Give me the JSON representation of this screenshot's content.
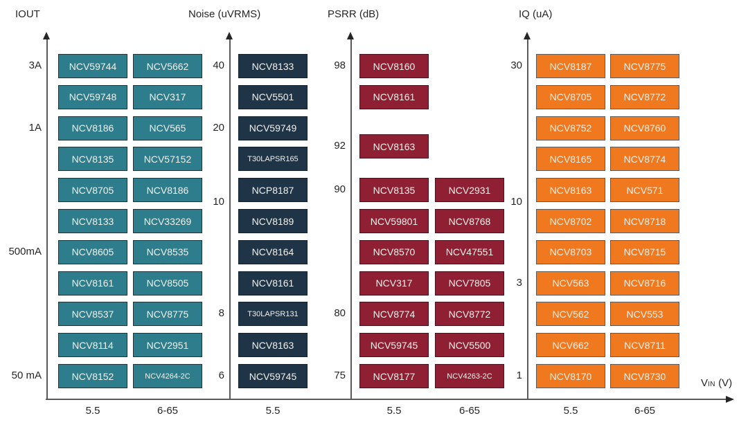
{
  "chart_data": {
    "type": "table",
    "description": "Four-panel LDO part selector chart; each panel plots part-number boxes against a parameter axis vs input-voltage columns",
    "x_axis_title": {
      "main": "V",
      "sub": "IN",
      "rest": " (V)"
    },
    "panels": [
      {
        "id": "iout",
        "title": "IOUT",
        "box_color": "#2E7D8C",
        "border_color": "#1E3238",
        "y_labels": [
          {
            "text": "3A",
            "row": 0
          },
          {
            "text": "1A",
            "row": 2
          },
          {
            "text": "500mA",
            "row": 6
          },
          {
            "text": "50 mA",
            "row": 10
          }
        ],
        "columns": [
          {
            "tick": "5.5",
            "boxes": [
              {
                "label": "NCV59744",
                "row": 0
              },
              {
                "label": "NCV59748",
                "row": 1
              },
              {
                "label": "NCV8186",
                "row": 2
              },
              {
                "label": "NCV8135",
                "row": 3
              },
              {
                "label": "NCV8705",
                "row": 4
              },
              {
                "label": "NCV8133",
                "row": 5
              },
              {
                "label": "NCV8605",
                "row": 6
              },
              {
                "label": "NCV8161",
                "row": 7
              },
              {
                "label": "NCV8537",
                "row": 8
              },
              {
                "label": "NCV8114",
                "row": 9
              },
              {
                "label": "NCV8152",
                "row": 10
              }
            ]
          },
          {
            "tick": "6-65",
            "boxes": [
              {
                "label": "NCV5662",
                "row": 0
              },
              {
                "label": "NCV317",
                "row": 1
              },
              {
                "label": "NCV565",
                "row": 2
              },
              {
                "label": "NCV57152",
                "row": 3
              },
              {
                "label": "NCV8186",
                "row": 4
              },
              {
                "label": "NCV33269",
                "row": 5
              },
              {
                "label": "NCV8535",
                "row": 6
              },
              {
                "label": "NCV8505",
                "row": 7
              },
              {
                "label": "NCV8775",
                "row": 8
              },
              {
                "label": "NCV2951",
                "row": 9
              },
              {
                "label": "NCV4264-2C",
                "row": 10
              }
            ]
          }
        ]
      },
      {
        "id": "noise",
        "title": "Noise (uVRMS)",
        "box_color": "#203448",
        "border_color": "#10202E",
        "y_labels": [
          {
            "text": "40",
            "row": 0
          },
          {
            "text": "20",
            "row": 2
          },
          {
            "text": "10",
            "row": 4.4
          },
          {
            "text": "8",
            "row": 8
          },
          {
            "text": "6",
            "row": 10
          }
        ],
        "columns": [
          {
            "tick": "5.5",
            "boxes": [
              {
                "label": "NCV8133",
                "row": 0
              },
              {
                "label": "NCV5501",
                "row": 1
              },
              {
                "label": "NCV59749",
                "row": 2
              },
              {
                "label": "T30LAPSR165",
                "row": 3
              },
              {
                "label": "NCP8187",
                "row": 4
              },
              {
                "label": "NCV8189",
                "row": 5
              },
              {
                "label": "NCV8164",
                "row": 6
              },
              {
                "label": "NCV8161",
                "row": 7
              },
              {
                "label": "T30LAPSR131",
                "row": 8
              },
              {
                "label": "NCV8163",
                "row": 9
              },
              {
                "label": "NCV59745",
                "row": 10
              }
            ]
          }
        ]
      },
      {
        "id": "psrr",
        "title": "PSRR (dB)",
        "box_color": "#8F2033",
        "border_color": "#4A0F1C",
        "y_labels": [
          {
            "text": "98",
            "row": 0
          },
          {
            "text": "92",
            "row": 2.6
          },
          {
            "text": "90",
            "row": 4
          },
          {
            "text": "80",
            "row": 8
          },
          {
            "text": "75",
            "row": 10
          }
        ],
        "columns": [
          {
            "tick": "5.5",
            "boxes": [
              {
                "label": "NCV8160",
                "row": 0
              },
              {
                "label": "NCV8161",
                "row": 1
              },
              {
                "label": "NCV8163",
                "row": 2.6
              },
              {
                "label": "NCV8135",
                "row": 4
              },
              {
                "label": "NCV59801",
                "row": 5
              },
              {
                "label": "NCV8570",
                "row": 6
              },
              {
                "label": "NCV317",
                "row": 7
              },
              {
                "label": "NCV8774",
                "row": 8
              },
              {
                "label": "NCV59745",
                "row": 9
              },
              {
                "label": "NCV8177",
                "row": 10
              }
            ]
          },
          {
            "tick": "6-65",
            "boxes": [
              {
                "label": "NCV2931",
                "row": 4
              },
              {
                "label": "NCV8768",
                "row": 5
              },
              {
                "label": "NCV47551",
                "row": 6
              },
              {
                "label": "NCV7805",
                "row": 7
              },
              {
                "label": "NCV8772",
                "row": 8
              },
              {
                "label": "NCV5500",
                "row": 9
              },
              {
                "label": "NCV4263-2C",
                "row": 10
              }
            ]
          }
        ]
      },
      {
        "id": "iq",
        "title": "IQ (uA)",
        "box_color": "#F0781E",
        "border_color": "#5B5B5B",
        "y_labels": [
          {
            "text": "30",
            "row": 0
          },
          {
            "text": "10",
            "row": 4.4
          },
          {
            "text": "3",
            "row": 7
          },
          {
            "text": "1",
            "row": 10
          }
        ],
        "columns": [
          {
            "tick": "5.5",
            "boxes": [
              {
                "label": "NCV8187",
                "row": 0
              },
              {
                "label": "NCV8705",
                "row": 1
              },
              {
                "label": "NCV8752",
                "row": 2
              },
              {
                "label": "NCV8165",
                "row": 3
              },
              {
                "label": "NCV8163",
                "row": 4
              },
              {
                "label": "NCV8702",
                "row": 5
              },
              {
                "label": "NCV8703",
                "row": 6
              },
              {
                "label": "NCV563",
                "row": 7
              },
              {
                "label": "NCV562",
                "row": 8
              },
              {
                "label": "NCV662",
                "row": 9
              },
              {
                "label": "NCV8170",
                "row": 10
              }
            ]
          },
          {
            "tick": "6-65",
            "boxes": [
              {
                "label": "NCV8775",
                "row": 0
              },
              {
                "label": "NCV8772",
                "row": 1
              },
              {
                "label": "NCV8760",
                "row": 2
              },
              {
                "label": "NCV8774",
                "row": 3
              },
              {
                "label": "NCV571",
                "row": 4
              },
              {
                "label": "NCV8718",
                "row": 5
              },
              {
                "label": "NCV8715",
                "row": 6
              },
              {
                "label": "NCV8716",
                "row": 7
              },
              {
                "label": "NCV553",
                "row": 8
              },
              {
                "label": "NCV8711",
                "row": 9
              },
              {
                "label": "NCV8730",
                "row": 10
              }
            ]
          }
        ]
      }
    ]
  }
}
